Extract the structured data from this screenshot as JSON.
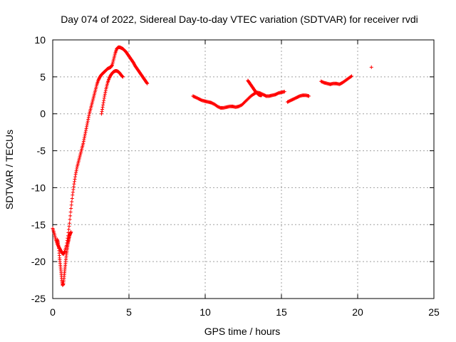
{
  "chart_data": {
    "type": "scatter",
    "title": "Day 074 of 2022, Sidereal Day-to-day VTEC variation (SDTVAR) for receiver rvdi",
    "xlabel": "GPS time / hours",
    "ylabel": "SDTVAR / TECUs",
    "xlim": [
      0,
      25
    ],
    "ylim": [
      -25,
      10
    ],
    "x_ticks": [
      0,
      5,
      10,
      15,
      20,
      25
    ],
    "y_ticks": [
      -25,
      -20,
      -15,
      -10,
      -5,
      0,
      5,
      10
    ],
    "x_tick_labels": [
      "0",
      "5",
      "10",
      "15",
      "20",
      "25"
    ],
    "y_tick_labels": [
      "-25",
      "-20",
      "-15",
      "-10",
      "-5",
      "0",
      "5",
      "10"
    ],
    "grid": true,
    "marker": "+",
    "series_color": "#ff0000",
    "series": [
      {
        "name": "SDTVAR",
        "segments": [
          {
            "x": [
              0.0,
              0.1,
              0.2,
              0.3,
              0.4,
              0.5,
              0.6,
              0.7,
              0.8,
              0.9,
              1.0,
              1.1,
              1.2,
              1.3,
              1.4,
              1.5,
              1.6,
              1.7,
              1.8,
              1.9,
              2.0,
              2.1,
              2.2,
              2.3,
              2.4,
              2.5,
              2.6,
              2.7,
              2.8,
              2.9,
              3.0,
              3.1,
              3.2,
              3.3,
              3.4,
              3.5,
              3.6,
              3.7,
              3.8,
              3.9,
              4.0,
              4.1,
              4.2,
              4.3,
              4.4,
              4.5,
              4.6,
              4.7,
              4.8,
              4.9,
              5.0,
              5.1,
              5.2,
              5.3,
              5.4,
              5.5,
              5.6,
              5.7,
              5.8,
              5.9,
              6.0,
              6.1,
              6.2
            ],
            "y": [
              -15.5,
              -16.2,
              -17.0,
              -17.6,
              -18.0,
              -18.4,
              -18.8,
              -19.0,
              -18.6,
              -17.8,
              -16.5,
              -14.8,
              -12.8,
              -11.0,
              -9.5,
              -8.2,
              -7.2,
              -6.4,
              -5.6,
              -4.8,
              -4.0,
              -3.0,
              -2.0,
              -1.0,
              0.0,
              0.8,
              1.6,
              2.4,
              3.2,
              4.0,
              4.6,
              5.0,
              5.3,
              5.5,
              5.7,
              5.9,
              6.1,
              6.2,
              6.3,
              6.6,
              7.4,
              8.2,
              8.8,
              9.0,
              9.0,
              8.9,
              8.8,
              8.6,
              8.4,
              8.1,
              7.8,
              7.5,
              7.2,
              6.9,
              6.5,
              6.2,
              5.9,
              5.6,
              5.3,
              5.0,
              4.7,
              4.4,
              4.1
            ]
          },
          {
            "x": [
              0.3,
              0.35,
              0.4,
              0.45,
              0.5,
              0.55,
              0.6,
              0.65,
              0.7,
              0.75,
              0.8,
              0.85,
              0.9,
              0.95,
              1.0,
              1.05,
              1.1,
              1.15,
              1.2
            ],
            "y": [
              -17.0,
              -17.5,
              -18.2,
              -19.5,
              -20.5,
              -21.5,
              -22.5,
              -23.2,
              -23.0,
              -22.0,
              -21.0,
              -20.0,
              -19.0,
              -18.2,
              -17.5,
              -17.0,
              -16.5,
              -16.2,
              -16.0
            ]
          },
          {
            "x": [
              3.2,
              3.3,
              3.4,
              3.5,
              3.6,
              3.7,
              3.8,
              3.9,
              4.0,
              4.1,
              4.2,
              4.3,
              4.4,
              4.5,
              4.6
            ],
            "y": [
              0.0,
              1.2,
              2.4,
              3.4,
              4.2,
              4.8,
              5.2,
              5.5,
              5.7,
              5.8,
              5.8,
              5.7,
              5.5,
              5.2,
              5.0
            ]
          },
          {
            "x": [
              9.2,
              9.4,
              9.6,
              9.8,
              10.0,
              10.2,
              10.4,
              10.6,
              10.8,
              11.0,
              11.2,
              11.4,
              11.6,
              11.8,
              12.0,
              12.2,
              12.4,
              12.6,
              12.8,
              13.0,
              13.2,
              13.4,
              13.6,
              13.8,
              14.0,
              14.2,
              14.4,
              14.6,
              14.8,
              15.0,
              15.2
            ],
            "y": [
              2.4,
              2.2,
              2.0,
              1.8,
              1.7,
              1.6,
              1.5,
              1.3,
              1.0,
              0.8,
              0.8,
              0.9,
              1.0,
              1.0,
              0.9,
              1.0,
              1.2,
              1.6,
              2.0,
              2.4,
              2.7,
              2.9,
              2.8,
              2.6,
              2.4,
              2.4,
              2.5,
              2.6,
              2.8,
              2.9,
              3.0
            ]
          },
          {
            "x": [
              12.8,
              12.9,
              13.0,
              13.1,
              13.2,
              13.3,
              13.4,
              13.5,
              13.6,
              13.7
            ],
            "y": [
              4.5,
              4.2,
              3.9,
              3.6,
              3.3,
              3.0,
              2.8,
              2.6,
              2.5,
              2.5
            ]
          },
          {
            "x": [
              15.4,
              15.6,
              15.8,
              16.0,
              16.2,
              16.4,
              16.6,
              16.8
            ],
            "y": [
              1.6,
              1.8,
              2.0,
              2.2,
              2.4,
              2.5,
              2.5,
              2.4
            ]
          },
          {
            "x": [
              17.6,
              17.8,
              18.0,
              18.2,
              18.4,
              18.6,
              18.8,
              19.0,
              19.2,
              19.4,
              19.6
            ],
            "y": [
              4.4,
              4.2,
              4.1,
              4.0,
              4.1,
              4.1,
              4.0,
              4.2,
              4.5,
              4.8,
              5.1
            ]
          },
          {
            "x": [
              20.9
            ],
            "y": [
              6.3
            ]
          }
        ]
      }
    ]
  }
}
